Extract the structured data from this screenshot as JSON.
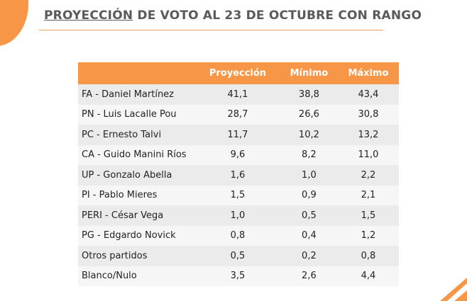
{
  "title": {
    "highlight": "PROYECCIÓN",
    "rest": "DE VOTO AL 23 DE OCTUBRE CON RANGO"
  },
  "table": {
    "columns": [
      "Proyección",
      "Mínimo",
      "Máximo"
    ],
    "rows": [
      [
        "FA - Daniel Martínez",
        "41,1",
        "38,8",
        "43,4"
      ],
      [
        "PN - Luis Lacalle Pou",
        "28,7",
        "26,6",
        "30,8"
      ],
      [
        "PC - Ernesto Talvi",
        "11,7",
        "10,2",
        "13,2"
      ],
      [
        "CA - Guido Manini Ríos",
        "9,6",
        "8,2",
        "11,0"
      ],
      [
        "UP - Gonzalo Abella",
        "1,6",
        "1,0",
        "2,2"
      ],
      [
        "PI - Pablo Mieres",
        "1,5",
        "0,9",
        "2,1"
      ],
      [
        "PERI - César Vega",
        "1,0",
        "0,5",
        "1,5"
      ],
      [
        "PG - Edgardo Novick",
        "0,8",
        "0,4",
        "1,2"
      ],
      [
        "Otros partidos",
        "0,5",
        "0,2",
        "0,8"
      ],
      [
        "Blanco/Nulo",
        "3,5",
        "2,6",
        "4,4"
      ]
    ]
  }
}
